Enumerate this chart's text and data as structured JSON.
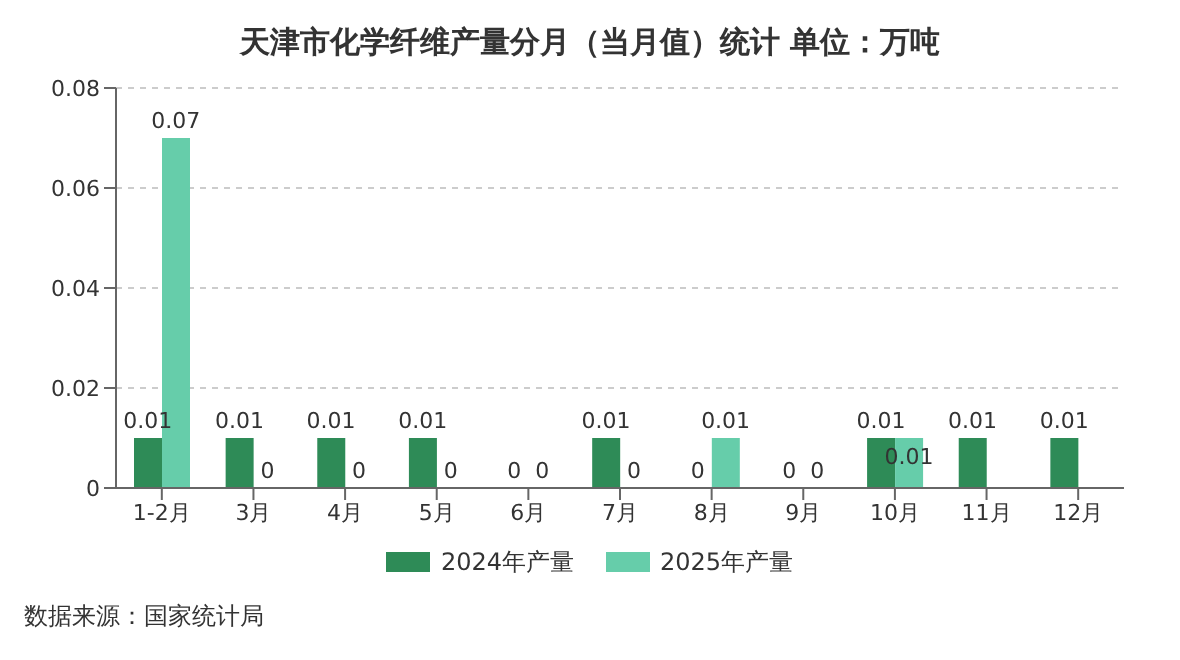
{
  "chart_data": {
    "type": "bar",
    "title": "天津市化学纤维产量分月（当月值）统计  单位：万吨",
    "categories": [
      "1-2月",
      "3月",
      "4月",
      "5月",
      "6月",
      "7月",
      "8月",
      "9月",
      "10月",
      "11月",
      "12月"
    ],
    "series": [
      {
        "name": "2024年产量",
        "color": "#2e8b57",
        "values": [
          0.01,
          0.01,
          0.01,
          0.01,
          0,
          0.01,
          0,
          0,
          0.01,
          0.01,
          0.01
        ]
      },
      {
        "name": "2025年产量",
        "color": "#66cdaa",
        "values": [
          0.07,
          0,
          0,
          0,
          0,
          0,
          0.01,
          0,
          0.01,
          null,
          null
        ]
      }
    ],
    "ylim": [
      0,
      0.08
    ],
    "yticks": [
      0,
      0.02,
      0.04,
      0.06,
      0.08
    ],
    "grid": "y",
    "legend": "bottom",
    "data_labels": true,
    "annotations": [
      "数据来源：国家统计局"
    ]
  }
}
